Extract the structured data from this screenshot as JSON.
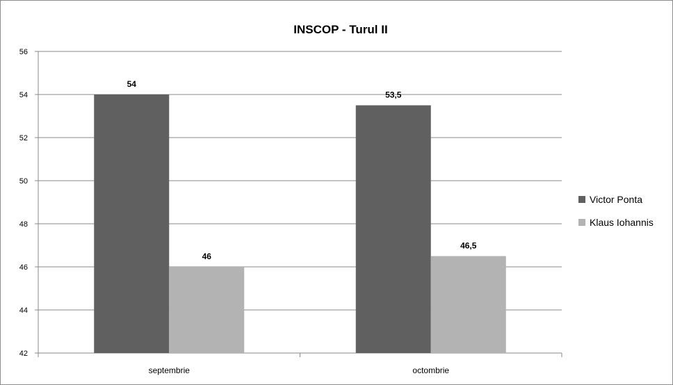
{
  "chart_data": {
    "type": "bar",
    "title": "INSCOP - Turul II",
    "categories": [
      "septembrie",
      "octombrie"
    ],
    "series": [
      {
        "name": "Victor Ponta",
        "values": [
          54,
          53.5
        ],
        "labels": [
          "54",
          "53,5"
        ],
        "color": "#606060"
      },
      {
        "name": "Klaus Iohannis",
        "values": [
          46,
          46.5
        ],
        "labels": [
          "46",
          "46,5"
        ],
        "color": "#b3b3b3"
      }
    ],
    "ylim": [
      42,
      56
    ],
    "yticks": [
      42,
      44,
      46,
      48,
      50,
      52,
      54,
      56
    ],
    "grid": true,
    "legend": "right",
    "xlabel": "",
    "ylabel": ""
  }
}
